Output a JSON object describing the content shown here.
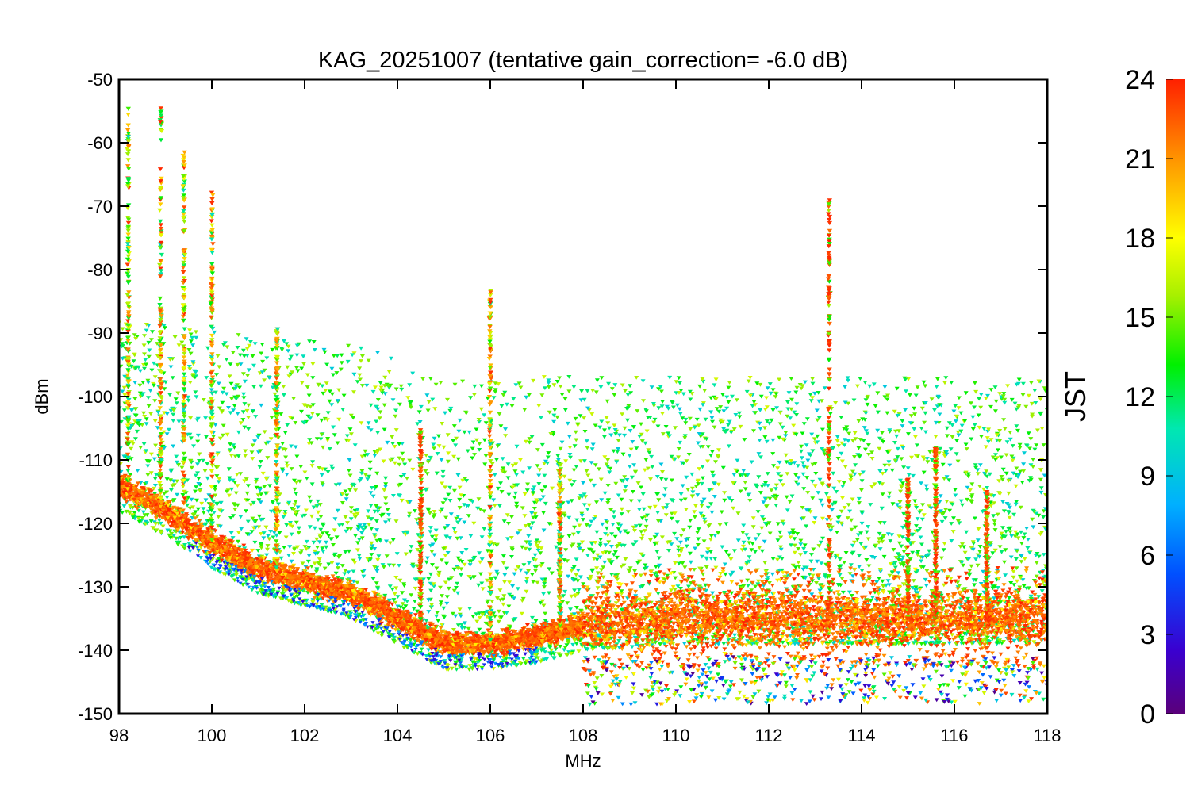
{
  "chart_data": {
    "type": "scatter",
    "title": "KAG_20251007 (tentative gain_correction= -6.0 dB)",
    "xlabel": "MHz",
    "ylabel": "dBm",
    "xlim": [
      98,
      118
    ],
    "ylim": [
      -150,
      -50
    ],
    "xticks": [
      "98",
      "100",
      "102",
      "104",
      "106",
      "108",
      "110",
      "112",
      "114",
      "116",
      "118"
    ],
    "yticks": [
      "-50",
      "-60",
      "-70",
      "-80",
      "-90",
      "-100",
      "-110",
      "-120",
      "-130",
      "-140",
      "-150"
    ],
    "colorbar": {
      "label": "JST",
      "range": [
        0,
        24
      ],
      "ticks": [
        "24",
        "21",
        "18",
        "15",
        "12",
        "9",
        "6",
        "3",
        "0"
      ],
      "colormap": "rainbow"
    },
    "noise_floor": [
      {
        "x": 98.0,
        "y": -114
      },
      {
        "x": 99.0,
        "y": -118
      },
      {
        "x": 100.0,
        "y": -123
      },
      {
        "x": 101.0,
        "y": -127
      },
      {
        "x": 102.0,
        "y": -129
      },
      {
        "x": 103.0,
        "y": -131
      },
      {
        "x": 104.0,
        "y": -135
      },
      {
        "x": 105.0,
        "y": -139
      },
      {
        "x": 106.0,
        "y": -139
      },
      {
        "x": 107.0,
        "y": -138
      },
      {
        "x": 108.0,
        "y": -136
      },
      {
        "x": 110.0,
        "y": -135
      },
      {
        "x": 112.0,
        "y": -135
      },
      {
        "x": 114.0,
        "y": -135
      },
      {
        "x": 116.0,
        "y": -135
      },
      {
        "x": 118.0,
        "y": -135
      }
    ],
    "signals": [
      {
        "freq": 98.2,
        "peak_dbm": -54
      },
      {
        "freq": 98.9,
        "peak_dbm": -54
      },
      {
        "freq": 99.4,
        "peak_dbm": -61
      },
      {
        "freq": 100.0,
        "peak_dbm": -67
      },
      {
        "freq": 101.4,
        "peak_dbm": -89
      },
      {
        "freq": 104.5,
        "peak_dbm": -105
      },
      {
        "freq": 106.0,
        "peak_dbm": -83
      },
      {
        "freq": 107.5,
        "peak_dbm": -110
      },
      {
        "freq": 113.3,
        "peak_dbm": -69
      },
      {
        "freq": 115.0,
        "peak_dbm": -113
      },
      {
        "freq": 115.6,
        "peak_dbm": -108
      },
      {
        "freq": 116.7,
        "peak_dbm": -115
      }
    ]
  }
}
